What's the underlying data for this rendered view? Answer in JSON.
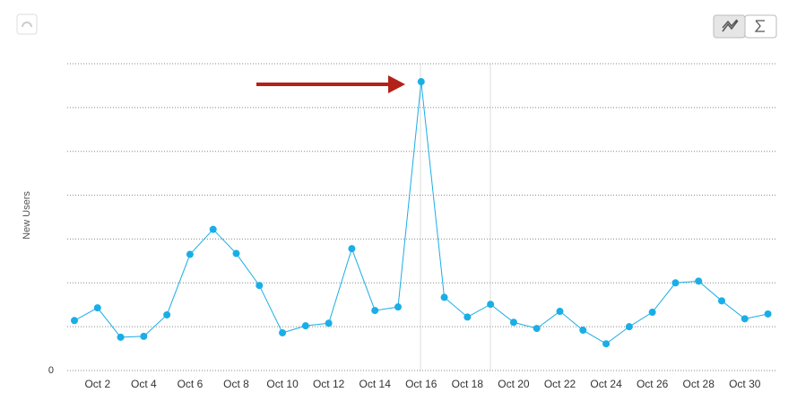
{
  "chart_data": {
    "type": "line",
    "y_label": "New Users",
    "categories": [
      null,
      "Oct 2",
      null,
      "Oct 4",
      null,
      "Oct 6",
      null,
      "Oct 8",
      null,
      "Oct 10",
      null,
      "Oct 12",
      null,
      "Oct 14",
      null,
      "Oct 16",
      null,
      "Oct 18",
      null,
      "Oct 20",
      null,
      "Oct 22",
      null,
      "Oct 24",
      null,
      "Oct 26",
      null,
      "Oct 28",
      null,
      "Oct 30",
      null
    ],
    "series": [
      {
        "name": "New Users",
        "color": "#1aaee6",
        "values": [
          1.14,
          1.43,
          0.76,
          0.78,
          1.27,
          2.65,
          3.22,
          2.67,
          1.94,
          0.86,
          1.02,
          1.08,
          2.78,
          1.37,
          1.45,
          6.59,
          1.67,
          1.22,
          1.51,
          1.1,
          0.96,
          1.35,
          0.92,
          0.61,
          1.0,
          1.33,
          2.0,
          2.04,
          1.59,
          1.18,
          1.29
        ]
      }
    ],
    "ylim": [
      0,
      7
    ],
    "yticks": [
      0,
      {
        "value": 1,
        "label": null
      },
      {
        "value": 2,
        "label": null
      },
      {
        "value": 3,
        "label": null
      },
      {
        "value": 4,
        "label": null
      },
      {
        "value": 5,
        "label": null
      },
      {
        "value": 6,
        "label": null
      },
      {
        "value": 7,
        "label": null
      }
    ],
    "grid": true
  }
}
